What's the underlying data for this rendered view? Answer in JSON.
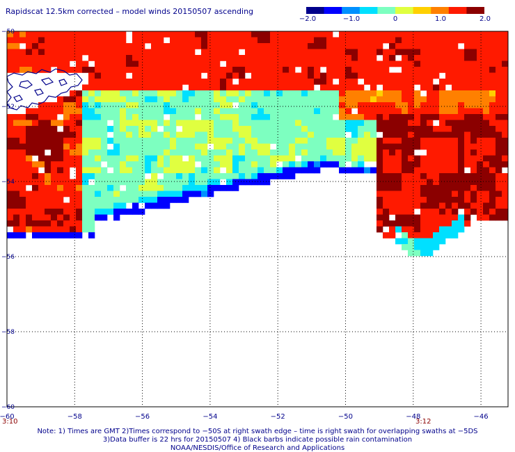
{
  "title": "Rapidscat 12.5km corrected – model winds 20150507 ascending",
  "colorbar": {
    "labels": [
      "−2.0",
      "−1.0",
      "0",
      "1.0",
      "2.0"
    ],
    "stops": [
      "#00008b",
      "#0000ff",
      "#0090ff",
      "#00e0ff",
      "#7dffc0",
      "#e0ff40",
      "#ffd000",
      "#ff8000",
      "#ff1a00",
      "#8b0000"
    ]
  },
  "map": {
    "lon_ticks": [
      "−60",
      "−58",
      "−56",
      "−54",
      "−52",
      "−50",
      "−48",
      "−46"
    ],
    "lat_ticks": [
      "−50",
      "−52",
      "−54",
      "−56",
      "−58",
      "−60"
    ],
    "lon_values": [
      -60,
      -58,
      -56,
      -54,
      -52,
      -50,
      -48,
      -46
    ],
    "lat_values": [
      -50,
      -52,
      -54,
      -56,
      -58,
      -60
    ],
    "lon_range": [
      -60,
      -45.2
    ],
    "lat_range": [
      -60,
      -50
    ],
    "grid": "dotted",
    "coastline_color": "#00008b",
    "land_label": ""
  },
  "times": [
    {
      "label": "3:10",
      "lon": -60
    },
    {
      "label": "3:12",
      "lon": -47.5
    }
  ],
  "notes": [
    "Note: 1) Times are GMT 2)Times correspond to −50S at right swath edge – time is right swath for overlapping swaths at −5DS",
    "3)Data buffer is 22 hrs for 20150507 4) Black barbs indicate possible rain contamination",
    "NOAA/NESDIS/Office of Research and Applications"
  ]
}
